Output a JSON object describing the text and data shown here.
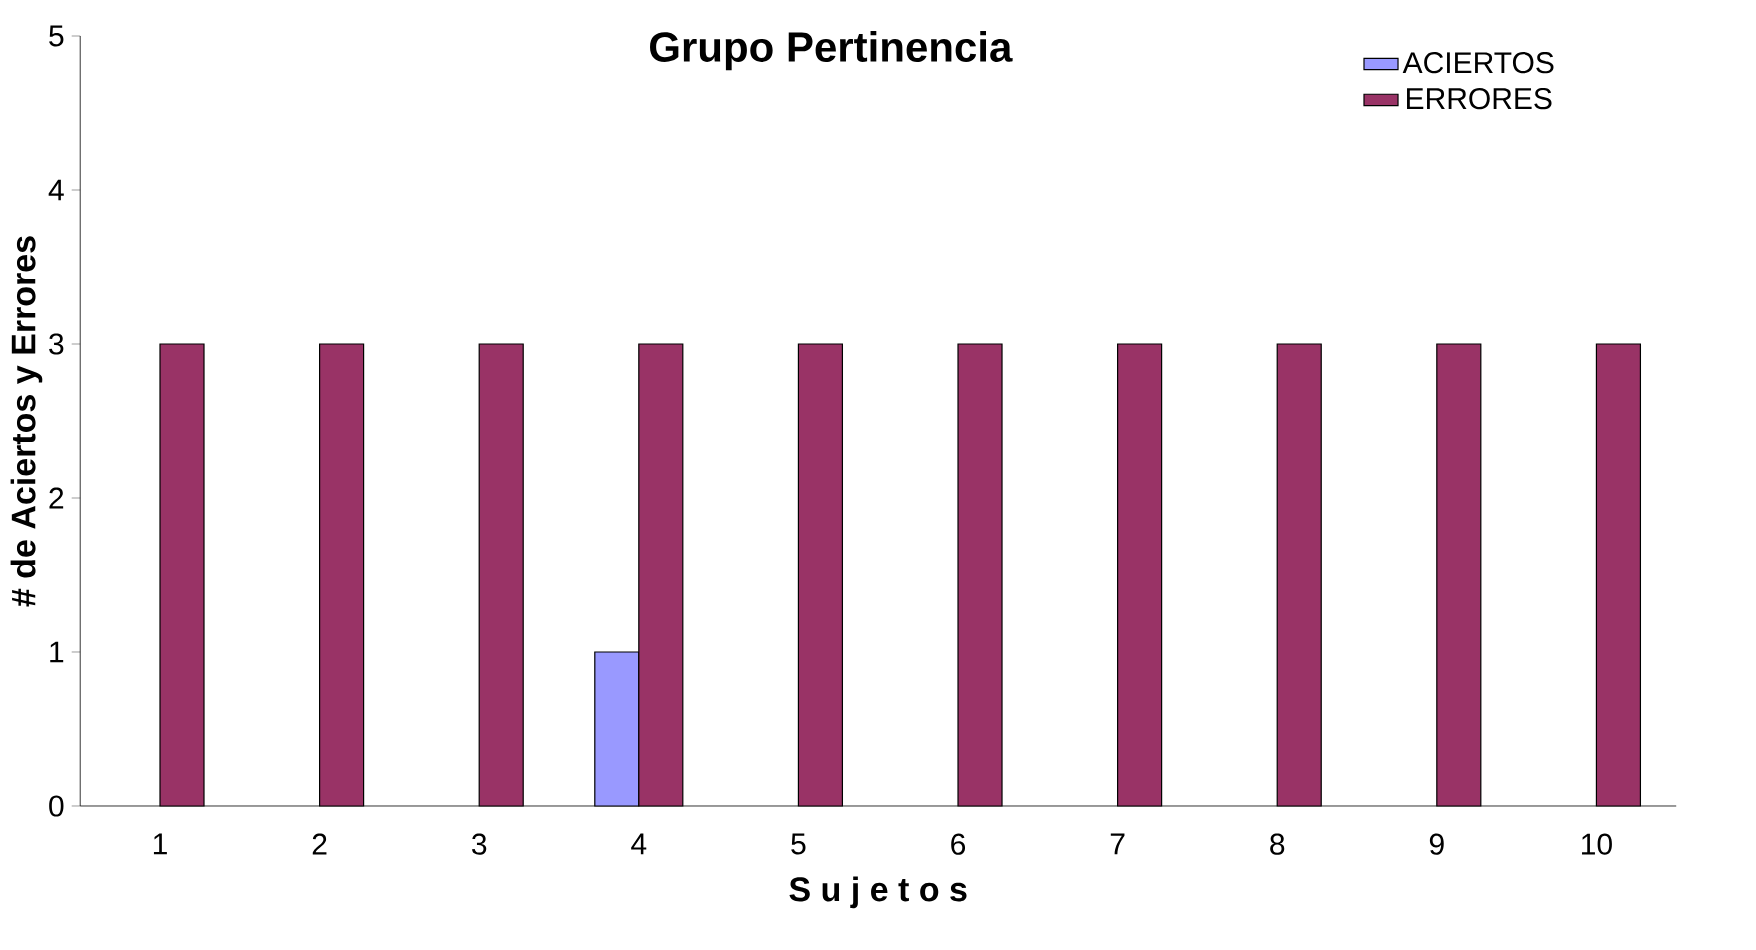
{
  "chart_data": {
    "type": "bar",
    "title": "Grupo Pertinencia",
    "xlabel": "S u j e t o s",
    "ylabel": "# de Aciertos y Errores",
    "categories": [
      "1",
      "2",
      "3",
      "4",
      "5",
      "6",
      "7",
      "8",
      "9",
      "10"
    ],
    "series": [
      {
        "name": "ACIERTOS",
        "color": "#9999ff",
        "values": [
          0,
          0,
          0,
          1,
          0,
          0,
          0,
          0,
          0,
          0
        ]
      },
      {
        "name": "ERRORES",
        "color": "#993366",
        "values": [
          3,
          3,
          3,
          3,
          3,
          3,
          3,
          3,
          3,
          3
        ]
      }
    ],
    "ylim": [
      0,
      5
    ],
    "yticks": [
      0,
      1,
      2,
      3,
      4,
      5
    ],
    "grid": false,
    "legend": "top right"
  }
}
